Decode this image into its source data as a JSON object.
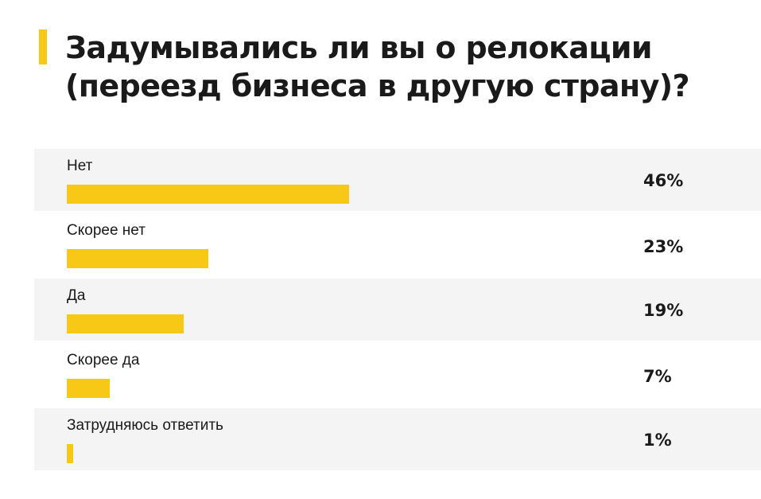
{
  "chart_data": {
    "type": "bar",
    "orientation": "horizontal",
    "title": "Задумывались ли вы о релокации (переезд бизнеса в другую страну)?",
    "categories": [
      "Нет",
      "Скорее нет",
      "Да",
      "Скорее да",
      "Затрудняюсь ответить"
    ],
    "values": [
      46,
      23,
      19,
      7,
      1
    ],
    "value_labels": [
      "46%",
      "23%",
      "19%",
      "7%",
      "1%"
    ],
    "unit": "%",
    "grid": false,
    "legend": "none"
  },
  "colors": {
    "accent": "#f7c815",
    "row_shade": "#f4f4f4",
    "text": "#1a1a1a"
  }
}
